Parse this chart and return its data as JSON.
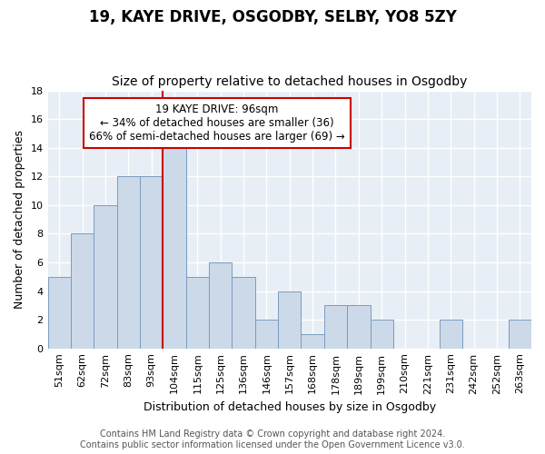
{
  "title": "19, KAYE DRIVE, OSGODBY, SELBY, YO8 5ZY",
  "subtitle": "Size of property relative to detached houses in Osgodby",
  "xlabel": "Distribution of detached houses by size in Osgodby",
  "ylabel": "Number of detached properties",
  "bin_labels": [
    "51sqm",
    "62sqm",
    "72sqm",
    "83sqm",
    "93sqm",
    "104sqm",
    "115sqm",
    "125sqm",
    "136sqm",
    "146sqm",
    "157sqm",
    "168sqm",
    "178sqm",
    "189sqm",
    "199sqm",
    "210sqm",
    "221sqm",
    "231sqm",
    "242sqm",
    "252sqm",
    "263sqm"
  ],
  "bar_values": [
    5,
    8,
    10,
    12,
    12,
    14,
    5,
    6,
    5,
    2,
    4,
    1,
    3,
    3,
    2,
    0,
    0,
    2,
    0,
    0,
    2
  ],
  "bar_color": "#ccd9e8",
  "bar_edge_color": "#7a9cbf",
  "vline_color": "#cc0000",
  "annotation_text": "19 KAYE DRIVE: 96sqm\n← 34% of detached houses are smaller (36)\n66% of semi-detached houses are larger (69) →",
  "annotation_box_color": "#cc0000",
  "ylim": [
    0,
    18
  ],
  "yticks": [
    0,
    2,
    4,
    6,
    8,
    10,
    12,
    14,
    16,
    18
  ],
  "footer": "Contains HM Land Registry data © Crown copyright and database right 2024.\nContains public sector information licensed under the Open Government Licence v3.0.",
  "bg_color": "#ffffff",
  "plot_bg_color": "#e8eef5",
  "grid_color": "#ffffff",
  "title_fontsize": 12,
  "subtitle_fontsize": 10,
  "axis_label_fontsize": 9,
  "tick_fontsize": 8,
  "annotation_fontsize": 8.5,
  "footer_fontsize": 7
}
